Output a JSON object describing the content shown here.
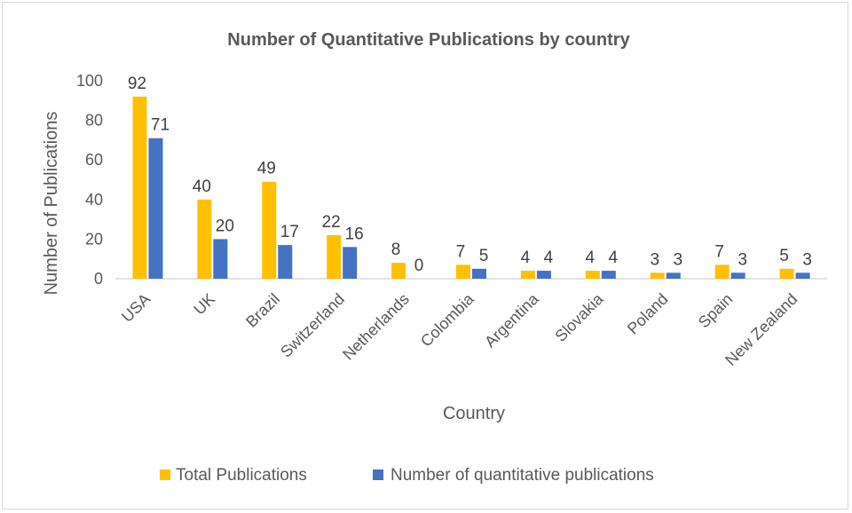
{
  "chart_data": {
    "type": "bar",
    "title": "Number of Quantitative Publications  by country",
    "xlabel": "Country",
    "ylabel": "Number of Publications",
    "categories": [
      "USA",
      "UK",
      "Brazil",
      "Switzerland",
      "Netherlands",
      "Colombia",
      "Argentina",
      "Slovakia",
      "Poland",
      "Spain",
      "New Zealand"
    ],
    "series": [
      {
        "name": "Total Publications",
        "color": "#FFC000",
        "values": [
          92,
          40,
          49,
          22,
          8,
          7,
          4,
          4,
          3,
          7,
          5
        ]
      },
      {
        "name": "Number of quantitative publications",
        "color": "#4472C4",
        "values": [
          71,
          20,
          17,
          16,
          0,
          5,
          4,
          4,
          3,
          3,
          3
        ]
      }
    ],
    "ylim": [
      0,
      100
    ],
    "yticks": [
      0,
      20,
      40,
      60,
      80,
      100
    ],
    "grid": false,
    "legend_position": "bottom"
  }
}
